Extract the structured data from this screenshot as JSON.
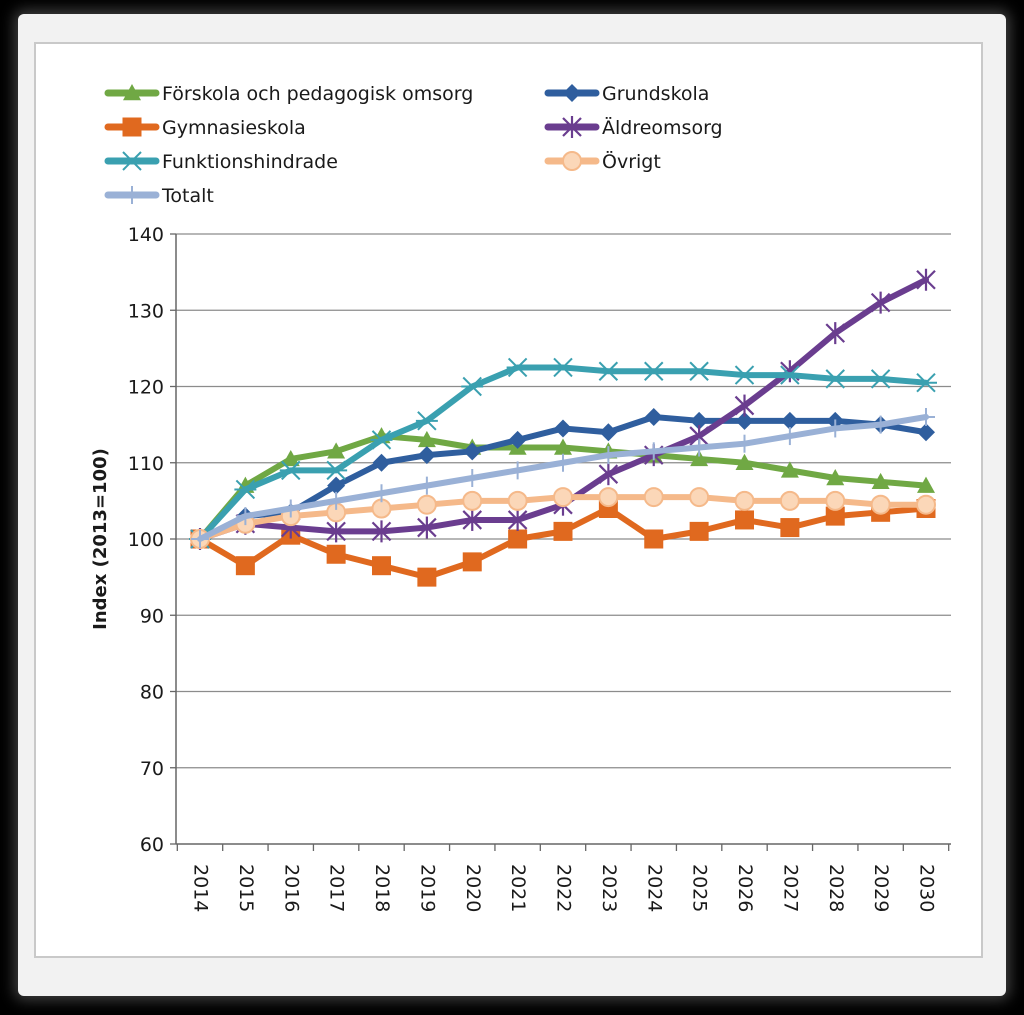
{
  "chart_data": {
    "type": "line",
    "title": "",
    "xlabel": "",
    "ylabel": "Index (2013=100)",
    "ylim": [
      60,
      140
    ],
    "yticks": [
      60,
      70,
      80,
      90,
      100,
      110,
      120,
      130,
      140
    ],
    "grid": "horizontal",
    "legend_position": "top",
    "x": [
      "2014",
      "2015",
      "2016",
      "2017",
      "2018",
      "2019",
      "2020",
      "2021",
      "2022",
      "2023",
      "2024",
      "2025",
      "2026",
      "2027",
      "2028",
      "2029",
      "2030"
    ],
    "series": [
      {
        "name": "Förskola och pedagogisk omsorg",
        "color": "#70a844",
        "marker": "triangle",
        "values": [
          100,
          107,
          110.5,
          111.5,
          113.5,
          113,
          112,
          112,
          112,
          111.5,
          111,
          110.5,
          110,
          109,
          108,
          107.5,
          107
        ]
      },
      {
        "name": "Grundskola",
        "color": "#2f5e9e",
        "marker": "diamond",
        "values": [
          100,
          103,
          103.5,
          107,
          110,
          111,
          111.5,
          113,
          114.5,
          114,
          116,
          115.5,
          115.5,
          115.5,
          115.5,
          115,
          114
        ]
      },
      {
        "name": "Gymnasieskola",
        "color": "#e0691f",
        "marker": "square",
        "values": [
          100,
          96.5,
          100.5,
          98,
          96.5,
          95,
          97,
          100,
          101,
          104,
          100,
          101,
          102.5,
          101.5,
          103,
          103.5,
          104
        ]
      },
      {
        "name": "Äldreomsorg",
        "color": "#6a3d8f",
        "marker": "star",
        "values": [
          100,
          102,
          101.5,
          101,
          101,
          101.5,
          102.5,
          102.5,
          104.5,
          108.5,
          111,
          113.5,
          117.5,
          122,
          127,
          131,
          134
        ]
      },
      {
        "name": "Funktionshindrade",
        "color": "#3aa0b0",
        "marker": "asterisk",
        "values": [
          100,
          106.5,
          109,
          109,
          113,
          115.5,
          120,
          122.5,
          122.5,
          122,
          122,
          122,
          121.5,
          121.5,
          121,
          121,
          120.5
        ]
      },
      {
        "name": "Övrigt",
        "color": "#f5b98a",
        "marker": "circle",
        "values": [
          100,
          102,
          103,
          103.5,
          104,
          104.5,
          105,
          105,
          105.5,
          105.5,
          105.5,
          105.5,
          105,
          105,
          105,
          104.5,
          104.5
        ]
      },
      {
        "name": "Totalt",
        "color": "#9ab1d6",
        "marker": "plus",
        "values": [
          100,
          103,
          104,
          105,
          106,
          107,
          108,
          109,
          110,
          111,
          111.5,
          112,
          112.5,
          113.5,
          114.5,
          115,
          116
        ]
      }
    ]
  }
}
